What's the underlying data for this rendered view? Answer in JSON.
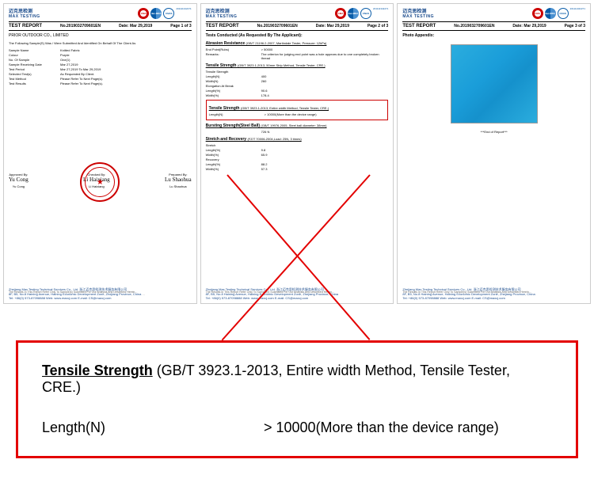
{
  "brand": {
    "chinese": "迈克思检测",
    "english": "MAX TESTING"
  },
  "certs": {
    "cma": "CMA",
    "iac": "ilac-MRA",
    "cnas": "CNAS",
    "reg": "201111342271"
  },
  "report": {
    "title": "TEST REPORT",
    "no_label": "No.",
    "no": "2019032709601EN",
    "date_label": "Date:",
    "date": "Mar 29,2019"
  },
  "page1": {
    "page": "Page 1 of 3",
    "company": "PRIOR OUTDOOR CO., LIMITED",
    "intro": "The Following Sample(S) Was / Were Submitted And Identified On Behalf Of The Client As",
    "fields": [
      {
        "l": "Sample Name",
        "v": "Knitted Fabric"
      },
      {
        "l": "Colour",
        "v": "Purple"
      },
      {
        "l": "No. Of Sample",
        "v": "One(1)"
      },
      {
        "l": "Sample Receiving Date",
        "v": "Mar 27,2019"
      },
      {
        "l": "Test Period",
        "v": "Mar 27,2019 To Mar 29,2019"
      },
      {
        "l": "Selected Test(s)",
        "v": "As Requested By Client."
      },
      {
        "l": "Test Method",
        "v": "Please Refer To Next Page(s)."
      },
      {
        "l": "Test Results",
        "v": "Please Refer To Next Page(s)."
      }
    ],
    "sigs": [
      {
        "role": "Approved By:",
        "script": "Yu Cong",
        "name": "Yu Cong"
      },
      {
        "role": "Checked By:",
        "script": "Li Haixiang",
        "name": "Li Haixiang"
      },
      {
        "role": "Prepared By:",
        "script": "Lu Shaohua",
        "name": "Lu Shaohua"
      }
    ]
  },
  "page2": {
    "page": "Page 2 of 3",
    "title": "Tests Conducted (As Requested By The Applicant):",
    "sections": [
      {
        "title": "Abrasion Resistance",
        "sub": "(GB/T 21196.2-2007, Martindale Tester, Pressure: 12kPa)",
        "rows": [
          {
            "l": "End Point(Rubs)",
            "v": "> 50000"
          },
          {
            "l": "Remarks:",
            "v": "The criterion for judging end point was a hole appears due to one completely broken thread"
          }
        ]
      },
      {
        "title": "Tensile Strength",
        "sub": "(GB/T 3923.1-2013, 50mm Strip Method, Tensile Tester, CRE.)",
        "rows": [
          {
            "l": "Tensile Strength",
            "v": ""
          },
          {
            "l": "Length(N)",
            "v": "400"
          },
          {
            "l": "Width(N)",
            "v": "260"
          },
          {
            "l": "Elongation At Break",
            "v": ""
          },
          {
            "l": "Length(%)",
            "v": "90.6"
          },
          {
            "l": "Width(%)",
            "v": "178.4"
          }
        ]
      },
      {
        "highlight": true,
        "title": "Tensile Strength",
        "sub": "(GB/T 3923.1-2013, Entire width Method, Tensile Tester, CRE.)",
        "rows": [
          {
            "l": "Length(N)",
            "v": "> 10000(More than the device range)"
          }
        ]
      },
      {
        "title": "Bursting Strength(Steel Ball)",
        "sub": "(GB/T 19976-2005, Steel ball diameter: 38mm)",
        "rows": [
          {
            "l": "",
            "v": "726 N"
          }
        ]
      },
      {
        "title": "Stretch and Recovery",
        "sub": "(FZ/T 70006-2004,Load: 25N, 3 times)",
        "rows": [
          {
            "l": "Stretch",
            "v": ""
          },
          {
            "l": "Length(%)",
            "v": "9.8"
          },
          {
            "l": "Width(%)",
            "v": "65.9"
          },
          {
            "l": "Recovery",
            "v": ""
          },
          {
            "l": "Length(%)",
            "v": "88.2"
          },
          {
            "l": "Width(%)",
            "v": "57.3"
          }
        ]
      }
    ]
  },
  "page3": {
    "page": "Page 3 of 3",
    "title": "Photo Appendix:",
    "end": "***End of Report***"
  },
  "footer": {
    "disclaimer": "The Results In This Report Refer Only To Sample(s) Submitted For Our Analysis And Described Herein...",
    "company_en": "Zhejiang Max Testing Technical Services Co., Ltd.",
    "company_cn": "浙江迈克思检测技术服务有限公司",
    "addr": "8F, B5, No.8 Haining Avenue, Haining Economic Development Zone, Zhejiang Province, China",
    "tel": "Tel: +86(0) 573-87098888    Web: www.maxcj.com    E-mail: CS@maxcj.com"
  },
  "callout": {
    "title": "Tensile Strength",
    "sub": " (GB/T 3923.1-2013, Entire width Method, Tensile Tester, CRE.)",
    "label": "Length(N)",
    "value": "> 10000(More than the device range)"
  },
  "colors": {
    "brand": "#1a4b8c",
    "accent": "#e30000",
    "photo": "#1a9dd9"
  }
}
